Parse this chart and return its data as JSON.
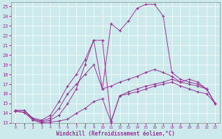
{
  "xlabel": "Windchill (Refroidissement éolien,°C)",
  "background_color": "#cce9ec",
  "grid_color": "#aacdd2",
  "line_color": "#993399",
  "xlim": [
    -0.5,
    23.5
  ],
  "ylim": [
    13,
    25.4
  ],
  "xticks": [
    0,
    1,
    2,
    3,
    4,
    5,
    6,
    7,
    8,
    9,
    10,
    11,
    12,
    13,
    14,
    15,
    16,
    17,
    18,
    19,
    20,
    21,
    22,
    23
  ],
  "yticks": [
    13,
    14,
    15,
    16,
    17,
    18,
    19,
    20,
    21,
    22,
    23,
    24,
    25
  ],
  "series1": [
    [
      0,
      14.2
    ],
    [
      1,
      14.1
    ],
    [
      2,
      13.3
    ],
    [
      3,
      13.0
    ],
    [
      4,
      13.1
    ],
    [
      5,
      13.2
    ],
    [
      6,
      13.4
    ],
    [
      7,
      14.0
    ],
    [
      8,
      14.5
    ],
    [
      9,
      15.2
    ],
    [
      10,
      15.5
    ],
    [
      11,
      13.1
    ],
    [
      12,
      15.8
    ],
    [
      13,
      16.0
    ],
    [
      14,
      16.2
    ],
    [
      15,
      16.5
    ],
    [
      16,
      16.8
    ],
    [
      17,
      17.0
    ],
    [
      18,
      17.2
    ],
    [
      19,
      16.8
    ],
    [
      20,
      16.5
    ],
    [
      21,
      16.2
    ],
    [
      22,
      16.0
    ],
    [
      23,
      15.0
    ]
  ],
  "series2": [
    [
      0,
      14.2
    ],
    [
      1,
      14.1
    ],
    [
      2,
      13.4
    ],
    [
      3,
      13.1
    ],
    [
      4,
      13.3
    ],
    [
      5,
      13.8
    ],
    [
      6,
      15.0
    ],
    [
      7,
      16.5
    ],
    [
      8,
      19.0
    ],
    [
      9,
      21.5
    ],
    [
      10,
      21.5
    ],
    [
      11,
      13.2
    ],
    [
      12,
      15.8
    ],
    [
      13,
      16.2
    ],
    [
      14,
      16.5
    ],
    [
      15,
      16.8
    ],
    [
      16,
      17.0
    ],
    [
      17,
      17.2
    ],
    [
      18,
      17.5
    ],
    [
      19,
      17.2
    ],
    [
      20,
      17.0
    ],
    [
      21,
      16.8
    ],
    [
      22,
      16.5
    ],
    [
      23,
      15.0
    ]
  ],
  "series3": [
    [
      0,
      14.3
    ],
    [
      1,
      14.3
    ],
    [
      2,
      13.4
    ],
    [
      3,
      13.2
    ],
    [
      4,
      13.5
    ],
    [
      5,
      14.5
    ],
    [
      6,
      16.0
    ],
    [
      7,
      17.0
    ],
    [
      8,
      18.0
    ],
    [
      9,
      19.0
    ],
    [
      10,
      16.5
    ],
    [
      11,
      23.2
    ],
    [
      12,
      22.5
    ],
    [
      13,
      23.5
    ],
    [
      14,
      24.8
    ],
    [
      15,
      25.2
    ],
    [
      16,
      25.2
    ],
    [
      17,
      24.0
    ],
    [
      18,
      18.2
    ],
    [
      19,
      17.5
    ],
    [
      20,
      17.2
    ],
    [
      21,
      17.0
    ],
    [
      22,
      16.5
    ],
    [
      23,
      15.0
    ]
  ],
  "series4": [
    [
      0,
      14.3
    ],
    [
      1,
      14.3
    ],
    [
      2,
      13.5
    ],
    [
      3,
      13.3
    ],
    [
      4,
      13.8
    ],
    [
      5,
      15.2
    ],
    [
      6,
      16.8
    ],
    [
      7,
      18.0
    ],
    [
      8,
      19.5
    ],
    [
      9,
      21.5
    ],
    [
      10,
      16.5
    ],
    [
      11,
      16.8
    ],
    [
      12,
      17.2
    ],
    [
      13,
      17.5
    ],
    [
      14,
      17.8
    ],
    [
      15,
      18.2
    ],
    [
      16,
      18.5
    ],
    [
      17,
      18.2
    ],
    [
      18,
      17.8
    ],
    [
      19,
      17.2
    ],
    [
      20,
      17.5
    ],
    [
      21,
      17.2
    ],
    [
      22,
      16.5
    ],
    [
      23,
      15.0
    ]
  ]
}
